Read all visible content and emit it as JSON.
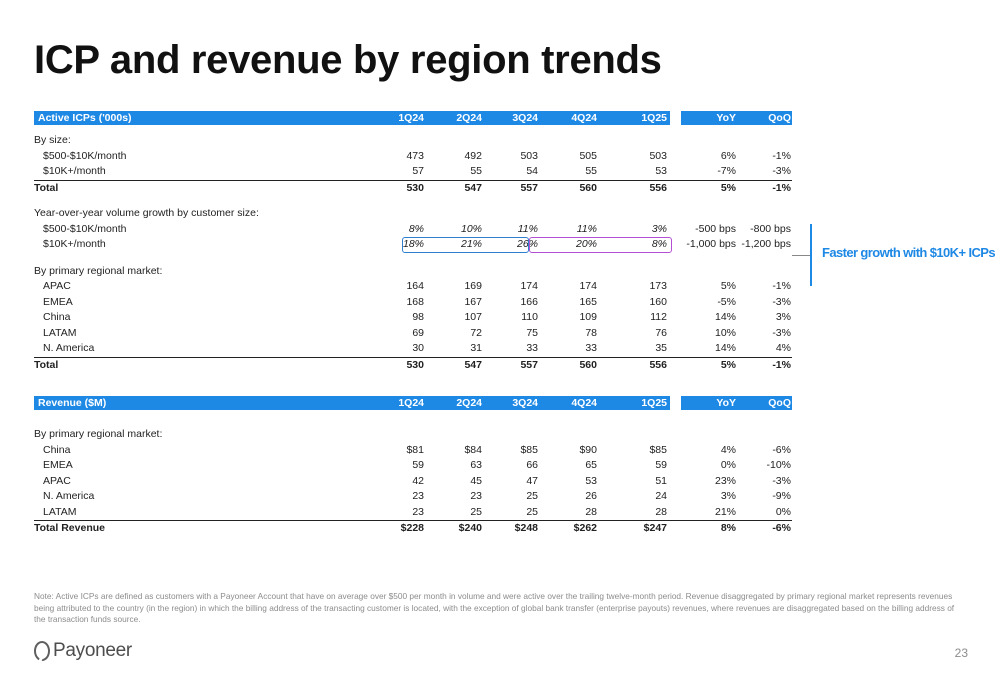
{
  "title": "ICP and revenue by region trends",
  "icp_table": {
    "header": [
      "Active ICPs ('000s)",
      "1Q24",
      "2Q24",
      "3Q24",
      "4Q24",
      "1Q25",
      "YoY",
      "QoQ"
    ],
    "by_size_label": "By size:",
    "size_rows": [
      {
        "label": "$500-$10K/month",
        "v": [
          "473",
          "492",
          "503",
          "505",
          "503",
          "6%",
          "-1%"
        ]
      },
      {
        "label": "$10K+/month",
        "v": [
          "57",
          "55",
          "54",
          "55",
          "53",
          "-7%",
          "-3%"
        ]
      }
    ],
    "size_total": {
      "label": "Total",
      "v": [
        "530",
        "547",
        "557",
        "560",
        "556",
        "5%",
        "-1%"
      ]
    },
    "growth_label": "Year-over-year volume growth by customer size:",
    "growth_rows": [
      {
        "label": "$500-$10K/month",
        "v": [
          "8%",
          "10%",
          "11%",
          "11%",
          "3%",
          "-500 bps",
          "-800 bps"
        ]
      },
      {
        "label": "$10K+/month",
        "v": [
          "18%",
          "21%",
          "26%",
          "20%",
          "8%",
          "-1,000 bps",
          "-1,200 bps"
        ]
      }
    ],
    "region_label": "By primary regional market:",
    "region_rows": [
      {
        "label": "APAC",
        "v": [
          "164",
          "169",
          "174",
          "174",
          "173",
          "5%",
          "-1%"
        ]
      },
      {
        "label": "EMEA",
        "v": [
          "168",
          "167",
          "166",
          "165",
          "160",
          "-5%",
          "-3%"
        ]
      },
      {
        "label": "China",
        "v": [
          "98",
          "107",
          "110",
          "109",
          "112",
          "14%",
          "3%"
        ]
      },
      {
        "label": "LATAM",
        "v": [
          "69",
          "72",
          "75",
          "78",
          "76",
          "10%",
          "-3%"
        ]
      },
      {
        "label": "N. America",
        "v": [
          "30",
          "31",
          "33",
          "33",
          "35",
          "14%",
          "4%"
        ]
      }
    ],
    "region_total": {
      "label": "Total",
      "v": [
        "530",
        "547",
        "557",
        "560",
        "556",
        "5%",
        "-1%"
      ]
    }
  },
  "revenue_table": {
    "header": [
      "Revenue ($M)",
      "1Q24",
      "2Q24",
      "3Q24",
      "4Q24",
      "1Q25",
      "YoY",
      "QoQ"
    ],
    "region_label": "By primary regional market:",
    "rows": [
      {
        "label": "China",
        "v": [
          "$81",
          "$84",
          "$85",
          "$90",
          "$85",
          "4%",
          "-6%"
        ]
      },
      {
        "label": "EMEA",
        "v": [
          "59",
          "63",
          "66",
          "65",
          "59",
          "0%",
          "-10%"
        ]
      },
      {
        "label": "APAC",
        "v": [
          "42",
          "45",
          "47",
          "53",
          "51",
          "23%",
          "-3%"
        ]
      },
      {
        "label": "N. America",
        "v": [
          "23",
          "23",
          "25",
          "26",
          "24",
          "3%",
          "-9%"
        ]
      },
      {
        "label": "LATAM",
        "v": [
          "23",
          "25",
          "25",
          "28",
          "28",
          "21%",
          "0%"
        ]
      }
    ],
    "total": {
      "label": "Total Revenue",
      "v": [
        "$228",
        "$240",
        "$248",
        "$262",
        "$247",
        "8%",
        "-6%"
      ]
    }
  },
  "callout": "Faster growth with $10K+ ICPs",
  "note": "Note: Active ICPs are defined as customers with a Payoneer Account that have on average over $500 per month in volume and were active over the trailing twelve-month period. Revenue disaggregated by primary regional market represents revenues being attributed to the country (in the region) in which the billing address of the transacting customer is located, with the exception of global bank transfer (enterprise payouts) revenues, where revenues are disaggregated based on the billing address of the transaction funds source.",
  "logo_text": "Payoneer",
  "page_number": "23",
  "colors": {
    "accent": "#1E88E5",
    "highlight_blue": "#2F7FD1",
    "highlight_purple": "#B44FD3"
  }
}
